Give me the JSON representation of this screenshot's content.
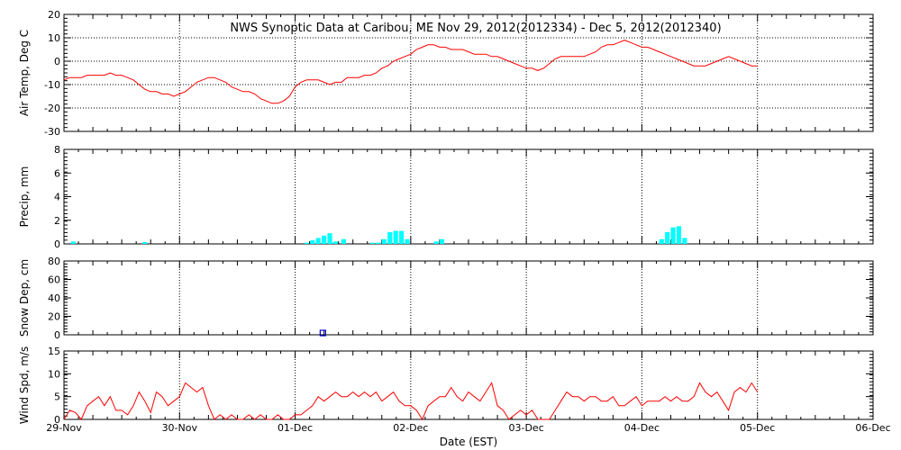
{
  "title": "NWS Synoptic Data at Caribou, ME   Nov 29, 2012(2012334) - Dec  5, 2012(2012340)",
  "xlabel": "Date (EST)",
  "x_tick_labels": [
    "29-Nov",
    "30-Nov",
    "01-Dec",
    "02-Dec",
    "03-Dec",
    "04-Dec",
    "05-Dec",
    "06-Dec"
  ],
  "colors": {
    "line": "#ff0000",
    "bar": "#00ffff",
    "snow": "#0000cc",
    "grid": "#000000"
  },
  "chart_data": [
    {
      "type": "line",
      "name": "air-temp",
      "ylabel": "Air Temp, Deg C",
      "ylim": [
        -30,
        20
      ],
      "y_ticks": [
        20,
        10,
        0,
        -10,
        -20,
        -30
      ],
      "x_unit": "days since 29-Nov",
      "grid": true,
      "series": [
        {
          "x": [
            0,
            0.05,
            0.1,
            0.15,
            0.2,
            0.25,
            0.3,
            0.35,
            0.4,
            0.45,
            0.5,
            0.55,
            0.6,
            0.65,
            0.7,
            0.75,
            0.8,
            0.85,
            0.9,
            0.95,
            1.0,
            1.05,
            1.1,
            1.15,
            1.2,
            1.25,
            1.3,
            1.35,
            1.4,
            1.45,
            1.5,
            1.55,
            1.6,
            1.65,
            1.7,
            1.75,
            1.8,
            1.85,
            1.9,
            1.95,
            2.0,
            2.05,
            2.1,
            2.15,
            2.2,
            2.25,
            2.3,
            2.35,
            2.4,
            2.45,
            2.5,
            2.55,
            2.6,
            2.65,
            2.7,
            2.75,
            2.8,
            2.85,
            2.9,
            2.95,
            3.0,
            3.05,
            3.1,
            3.15,
            3.2,
            3.25,
            3.3,
            3.35,
            3.4,
            3.45,
            3.5,
            3.55,
            3.6,
            3.65,
            3.7,
            3.75,
            3.8,
            3.85,
            3.9,
            3.95,
            4.0,
            4.05,
            4.1,
            4.15,
            4.2,
            4.25,
            4.3,
            4.35,
            4.4,
            4.45,
            4.5,
            4.55,
            4.6,
            4.65,
            4.7,
            4.75,
            4.8,
            4.85,
            4.9,
            4.95,
            5.0,
            5.05,
            5.1,
            5.15,
            5.2,
            5.25,
            5.3,
            5.35,
            5.4,
            5.45,
            5.5,
            5.55,
            5.6,
            5.65,
            5.7,
            5.75,
            5.8,
            5.85,
            5.9,
            5.95,
            6.0
          ],
          "y": [
            -8,
            -7,
            -7,
            -7,
            -6,
            -6,
            -6,
            -6,
            -5,
            -6,
            -6,
            -7,
            -8,
            -10,
            -12,
            -13,
            -13,
            -14,
            -14,
            -15,
            -14,
            -13,
            -11,
            -9,
            -8,
            -7,
            -7,
            -8,
            -9,
            -11,
            -12,
            -13,
            -13,
            -14,
            -16,
            -17,
            -18,
            -18,
            -17,
            -15,
            -11,
            -9,
            -8,
            -8,
            -8,
            -9,
            -10,
            -9,
            -9,
            -7,
            -7,
            -7,
            -6,
            -6,
            -5,
            -3,
            -2,
            0,
            1,
            2,
            3,
            5,
            6,
            7,
            7,
            6,
            6,
            5,
            5,
            5,
            4,
            3,
            3,
            3,
            2,
            2,
            1,
            0,
            -1,
            -2,
            -3,
            -3,
            -4,
            -3,
            -1,
            1,
            2,
            2,
            2,
            2,
            2,
            3,
            4,
            6,
            7,
            7,
            8,
            9,
            8,
            7,
            6,
            6,
            5,
            4,
            3,
            2,
            1,
            0,
            -1,
            -2,
            -2,
            -2,
            -1,
            0,
            1,
            2,
            1,
            0,
            -1,
            -2,
            -2
          ]
        }
      ]
    },
    {
      "type": "bar",
      "name": "precip",
      "ylabel": "Precip, mm",
      "ylim": [
        0,
        8
      ],
      "y_ticks": [
        8,
        6,
        4,
        2,
        0
      ],
      "x_unit": "days since 29-Nov",
      "bar_width_days": 0.04,
      "x": [
        0.08,
        0.7,
        2.1,
        2.15,
        2.2,
        2.25,
        2.3,
        2.35,
        2.42,
        2.67,
        2.72,
        2.77,
        2.82,
        2.87,
        2.92,
        2.97,
        3.22,
        3.27,
        5.17,
        5.22,
        5.27,
        5.32,
        5.37
      ],
      "values": [
        0.2,
        0.15,
        0.1,
        0.3,
        0.5,
        0.7,
        0.9,
        0.2,
        0.4,
        0.1,
        0.1,
        0.4,
        1.0,
        1.1,
        1.1,
        0.4,
        0.2,
        0.4,
        0.4,
        1.0,
        1.4,
        1.5,
        0.5
      ]
    },
    {
      "type": "scatter",
      "name": "snow-depth",
      "ylabel": "Snow Dep, cm",
      "ylim": [
        0,
        80
      ],
      "y_ticks": [
        80,
        60,
        40,
        20,
        0
      ],
      "x_unit": "days since 29-Nov",
      "x": [
        2.24
      ],
      "y": [
        0
      ]
    },
    {
      "type": "line",
      "name": "wind-speed",
      "ylabel": "Wind Spd, m/s",
      "ylim": [
        0,
        15
      ],
      "y_ticks": [
        15,
        10,
        5,
        0
      ],
      "x_unit": "days since 29-Nov",
      "series": [
        {
          "x": [
            0,
            0.05,
            0.1,
            0.15,
            0.2,
            0.25,
            0.3,
            0.35,
            0.4,
            0.45,
            0.5,
            0.55,
            0.6,
            0.65,
            0.7,
            0.75,
            0.8,
            0.85,
            0.9,
            0.95,
            1.0,
            1.05,
            1.1,
            1.15,
            1.2,
            1.25,
            1.3,
            1.35,
            1.4,
            1.45,
            1.5,
            1.55,
            1.6,
            1.65,
            1.7,
            1.75,
            1.8,
            1.85,
            1.9,
            1.95,
            2.0,
            2.05,
            2.1,
            2.15,
            2.2,
            2.25,
            2.3,
            2.35,
            2.4,
            2.45,
            2.5,
            2.55,
            2.6,
            2.65,
            2.7,
            2.75,
            2.8,
            2.85,
            2.9,
            2.95,
            3.0,
            3.05,
            3.1,
            3.15,
            3.2,
            3.25,
            3.3,
            3.35,
            3.4,
            3.45,
            3.5,
            3.55,
            3.6,
            3.65,
            3.7,
            3.75,
            3.8,
            3.85,
            3.9,
            3.95,
            4.0,
            4.05,
            4.1,
            4.15,
            4.2,
            4.25,
            4.3,
            4.35,
            4.4,
            4.45,
            4.5,
            4.55,
            4.6,
            4.65,
            4.7,
            4.75,
            4.8,
            4.85,
            4.9,
            4.95,
            5.0,
            5.05,
            5.1,
            5.15,
            5.2,
            5.25,
            5.3,
            5.35,
            5.4,
            5.45,
            5.5,
            5.55,
            5.6,
            5.65,
            5.7,
            5.75,
            5.8,
            5.85,
            5.9,
            5.95,
            6.0
          ],
          "y": [
            0,
            2,
            1.5,
            0,
            3,
            4,
            5,
            3,
            5,
            2,
            2,
            1,
            3,
            6,
            4,
            1.5,
            6,
            5,
            3,
            4,
            5,
            8,
            7,
            6,
            7,
            3,
            0,
            1,
            0,
            1,
            0,
            0,
            1,
            0,
            1,
            0,
            0,
            1,
            0,
            0,
            1,
            1,
            2,
            3,
            5,
            4,
            5,
            6,
            5,
            5,
            6,
            5,
            6,
            5,
            6,
            4,
            5,
            6,
            4,
            3,
            3,
            2,
            0,
            3,
            4,
            5,
            5,
            7,
            5,
            4,
            6,
            5,
            4,
            6,
            8,
            3,
            2,
            0,
            1,
            2,
            1,
            2,
            0,
            0,
            0,
            2,
            4,
            6,
            5,
            5,
            4,
            5,
            5,
            4,
            4,
            5,
            3,
            3,
            4,
            5,
            3,
            4,
            4,
            4,
            5,
            4,
            5,
            4,
            4,
            5,
            8,
            6,
            5,
            6,
            4,
            2,
            6,
            7,
            6,
            8,
            6
          ]
        }
      ]
    }
  ]
}
